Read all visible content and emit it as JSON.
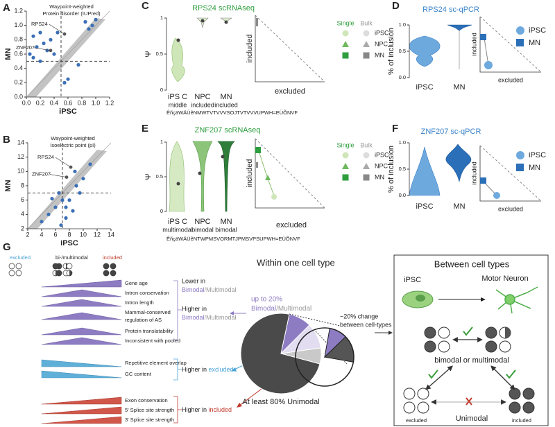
{
  "panels": {
    "A": {
      "label": "A",
      "title": [
        "Waypoint-weighted",
        "Protein disorder (IUPred)"
      ],
      "x_label": "iPSC",
      "y_label": "MN",
      "xlim": [
        0,
        1.2
      ],
      "ylim": [
        0,
        1.2
      ],
      "xticks": [
        {
          "value": 0,
          "label": "0.0"
        },
        0.2,
        0.4,
        0.6,
        0.8,
        {
          "value": 1,
          "label": "1.0"
        },
        1.2
      ],
      "yticks": [
        {
          "value": 0,
          "label": "0.0"
        },
        0.2,
        0.4,
        0.6,
        0.8,
        {
          "value": 1,
          "label": "1.0"
        },
        1.2
      ],
      "dashed_x": 0.5,
      "dashed_y": 0.5,
      "highlight_color": "#3b6fb6",
      "highlighted": {
        "x": [
          0.05,
          0.1,
          0.15,
          0.2,
          0.25,
          0.3,
          0.35,
          0.4,
          0.1,
          0.2,
          0.85,
          0.9,
          0.95,
          1.0,
          0.55,
          0.6,
          0.45,
          0.75
        ],
        "y": [
          0.6,
          0.55,
          0.7,
          0.5,
          0.75,
          0.65,
          0.8,
          0.6,
          0.85,
          0.9,
          1.05,
          0.95,
          1.0,
          1.08,
          0.2,
          0.25,
          0.9,
          0.45
        ]
      },
      "labeled_points": [
        {
          "name": "RPS24",
          "x": 0.55,
          "y": 0.88
        },
        {
          "name": "ZNF207",
          "x": 0.35,
          "y": 0.65
        }
      ]
    },
    "B": {
      "label": "B",
      "title": [
        "Waypoint-weighted",
        "Isoelectric point (pI)"
      ],
      "x_label": "iPSC",
      "y_label": "MN",
      "xlim": [
        2,
        14
      ],
      "ylim": [
        2,
        14
      ],
      "xticks": [
        2,
        4,
        6,
        8,
        10,
        12,
        14
      ],
      "yticks": [
        2,
        4,
        6,
        8,
        10,
        12,
        14
      ],
      "dashed_x": 7,
      "dashed_y": 7,
      "highlight_color": "#3b6fb6",
      "highlighted": {
        "x": [
          4,
          5,
          6,
          6.5,
          7,
          7.5,
          8,
          9,
          10,
          11,
          7.5,
          8.5,
          9.5,
          6.8,
          5.5,
          8.8
        ],
        "y": [
          3,
          4,
          5,
          7,
          6,
          5,
          6,
          8,
          9,
          11,
          3.5,
          4.5,
          7,
          2.5,
          6.2,
          10
        ]
      },
      "labeled_points": [
        {
          "name": "RPS24",
          "x": 8.2,
          "y": 10.6
        },
        {
          "name": "ZNF207",
          "x": 7.6,
          "y": 9.2
        }
      ]
    },
    "C": {
      "label": "C",
      "title": "RPS24 scRNAseq",
      "y_label": "Ψ",
      "ylim": [
        0,
        1
      ],
      "yticks": [
        0,
        0.5,
        1
      ],
      "categories": [
        "iPS C",
        "NPC",
        "MN"
      ],
      "sublabels": [
        "middle",
        "included",
        "included"
      ],
      "garbled": "ÊñçäWÄÜêNMWTVTVVVSOJTVTVVVUPWH=EÜÕNVF",
      "tri_y": "included",
      "tri_x": "excluded",
      "legend": {
        "cols": [
          "Single",
          "Bulk"
        ],
        "rows": [
          "iPSC",
          "NPC",
          "MN"
        ]
      }
    },
    "D": {
      "label": "D",
      "title": "RPS24 sc-qPCR",
      "y_label": "% of inclusion",
      "ylim": [
        0,
        1
      ],
      "yticks": [
        {
          "value": 0,
          "label": "0.0"
        },
        0.5,
        {
          "value": 1,
          "label": "1.0"
        }
      ],
      "categories": [
        "iPSC",
        "MN"
      ],
      "tri_y": "included",
      "tri_x": "excluded",
      "legend": [
        "iPSC",
        "MN"
      ]
    },
    "E": {
      "label": "E",
      "title": "ZNF207 scRNAseq",
      "y_label": "Ψ",
      "ylim": [
        0,
        1
      ],
      "yticks": [
        0,
        0.5,
        1
      ],
      "categories": [
        "iPS C",
        "NPC",
        "MN"
      ],
      "sublabels": [
        "multimodal",
        "bimodal",
        "bimodal"
      ],
      "garbled": "ÊñçäWÄÜêNTWPMSVORMTJPMSVPSUPWH=EÜÕNVF",
      "tri_y": "included",
      "tri_x": "excluded",
      "legend": {
        "cols": [
          "Single",
          "Bulk"
        ],
        "rows": [
          "iPSC",
          "NPC",
          "MN"
        ]
      }
    },
    "F": {
      "label": "F",
      "title": "ZNF207 sc-qPCR",
      "y_label": "% of inclusion",
      "ylim": [
        0,
        1
      ],
      "yticks": [
        {
          "value": 0,
          "label": "0.0"
        },
        0.5,
        {
          "value": 1,
          "label": "1.0"
        }
      ],
      "categories": [
        "iPSC",
        "MN"
      ],
      "tri_y": "included",
      "tri_x": "excluded",
      "legend": [
        "iPSC",
        "MN"
      ]
    },
    "G": {
      "label": "G",
      "key": [
        "excluded",
        "bi-/multimodal",
        "included"
      ],
      "features_bimodal": [
        "Gene age",
        "Intron conservation",
        "Intron length",
        "Mammal-conserved",
        "regulation of AS",
        "Protein translatability",
        "Inconsistent with pooled"
      ],
      "features_excluded": [
        "Repetitive element overlap",
        "GC content"
      ],
      "features_included": [
        "Exon conservation",
        "5' Splice site strength",
        "3' Splice site strength"
      ],
      "lower": [
        "Lower in",
        "Bimodal",
        "/Multimodal"
      ],
      "higher": [
        "Higher in",
        "Bimodal",
        "/Multimodal"
      ],
      "higher_excluded": [
        "Higher in ",
        "excluded"
      ],
      "higher_included": [
        "Higher in ",
        "included"
      ],
      "within": "Within one cell type",
      "up_to": [
        "up to 20%",
        "Bimodal",
        "/Multimodal"
      ],
      "change": [
        "~20% change",
        "between cell-types"
      ],
      "at_least": "At least 80% Unimodal",
      "between": "Between cell types",
      "cells": [
        "iPSC",
        "Motor Neuron"
      ],
      "bimodal_or": "bimodal or multimodal",
      "bottom": [
        "excluded",
        "Unimodal",
        "included"
      ]
    }
  }
}
